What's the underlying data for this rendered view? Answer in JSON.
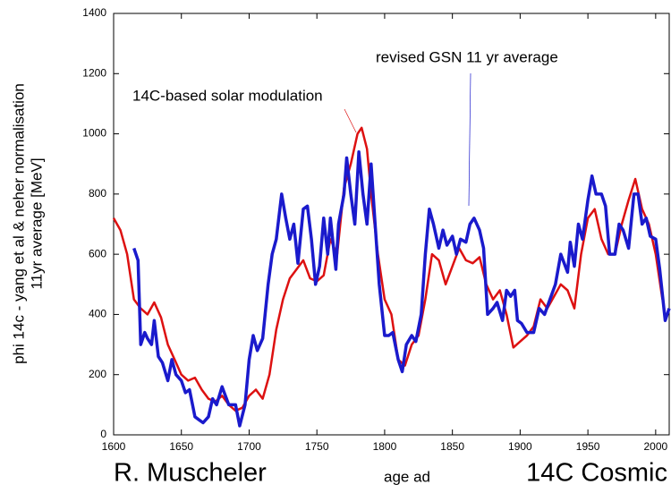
{
  "chart_data": {
    "type": "line",
    "ylabel": [
      "phi 14c - yang et al & neher normalisation",
      "11yr average [MeV]"
    ],
    "xlabel": "age ad",
    "footer_left": "R. Muscheler",
    "footer_right": "14C Cosmic",
    "xlim": [
      1600,
      2010
    ],
    "xticks": [
      1600,
      1650,
      1700,
      1750,
      1800,
      1850,
      1900,
      1950,
      2000
    ],
    "ylim": [
      0,
      1400
    ],
    "yticks": [
      0,
      200,
      400,
      600,
      800,
      1000,
      1200,
      1400
    ],
    "series": [
      {
        "name": "14C-based solar modulation",
        "color": "#dd1111",
        "x": [
          1600,
          1605,
          1610,
          1615,
          1620,
          1625,
          1630,
          1635,
          1640,
          1645,
          1650,
          1655,
          1660,
          1665,
          1670,
          1675,
          1680,
          1685,
          1690,
          1695,
          1700,
          1705,
          1710,
          1715,
          1720,
          1725,
          1730,
          1735,
          1740,
          1745,
          1750,
          1755,
          1760,
          1765,
          1770,
          1775,
          1780,
          1783,
          1787,
          1790,
          1795,
          1800,
          1805,
          1810,
          1815,
          1820,
          1825,
          1830,
          1835,
          1840,
          1845,
          1850,
          1855,
          1860,
          1865,
          1870,
          1875,
          1880,
          1885,
          1890,
          1895,
          1900,
          1905,
          1910,
          1915,
          1920,
          1925,
          1930,
          1935,
          1940,
          1945,
          1950,
          1955,
          1960,
          1965,
          1970,
          1975,
          1980,
          1985,
          1990,
          1995,
          2000,
          2005
        ],
        "values": [
          720,
          680,
          600,
          450,
          420,
          400,
          440,
          390,
          300,
          250,
          200,
          180,
          190,
          150,
          120,
          110,
          130,
          100,
          80,
          90,
          130,
          150,
          120,
          200,
          350,
          450,
          520,
          550,
          580,
          520,
          510,
          530,
          650,
          600,
          820,
          900,
          1000,
          1020,
          950,
          800,
          600,
          450,
          400,
          250,
          230,
          300,
          330,
          450,
          600,
          580,
          500,
          560,
          620,
          580,
          570,
          590,
          500,
          450,
          480,
          400,
          290,
          310,
          330,
          360,
          450,
          420,
          460,
          500,
          480,
          420,
          600,
          720,
          750,
          650,
          600,
          600,
          700,
          780,
          850,
          750,
          700,
          600,
          450
        ]
      },
      {
        "name": "revised GSN 11 yr average",
        "color": "#1a1acc",
        "x": [
          1615,
          1618,
          1620,
          1623,
          1625,
          1628,
          1630,
          1633,
          1636,
          1640,
          1643,
          1646,
          1650,
          1653,
          1656,
          1660,
          1663,
          1666,
          1670,
          1673,
          1676,
          1680,
          1685,
          1690,
          1693,
          1697,
          1700,
          1703,
          1706,
          1710,
          1714,
          1717,
          1720,
          1724,
          1727,
          1730,
          1733,
          1736,
          1740,
          1743,
          1746,
          1749,
          1752,
          1755,
          1758,
          1760,
          1764,
          1766,
          1770,
          1772,
          1775,
          1778,
          1781,
          1784,
          1787,
          1790,
          1793,
          1796,
          1800,
          1803,
          1806,
          1810,
          1813,
          1816,
          1820,
          1823,
          1827,
          1830,
          1833,
          1836,
          1840,
          1843,
          1846,
          1850,
          1853,
          1856,
          1860,
          1863,
          1866,
          1870,
          1873,
          1876,
          1880,
          1883,
          1887,
          1890,
          1893,
          1896,
          1898,
          1901,
          1905,
          1910,
          1914,
          1918,
          1922,
          1926,
          1930,
          1935,
          1937,
          1940,
          1943,
          1946,
          1950,
          1953,
          1956,
          1960,
          1963,
          1966,
          1970,
          1973,
          1976,
          1980,
          1984,
          1987,
          1990,
          1993,
          1996,
          2000,
          2003,
          2007,
          2010
        ],
        "values": [
          620,
          580,
          300,
          340,
          320,
          300,
          380,
          260,
          240,
          180,
          250,
          200,
          180,
          140,
          150,
          60,
          50,
          40,
          60,
          120,
          100,
          160,
          100,
          100,
          30,
          100,
          250,
          330,
          280,
          320,
          500,
          600,
          650,
          800,
          720,
          650,
          700,
          570,
          750,
          760,
          650,
          500,
          560,
          720,
          600,
          720,
          550,
          700,
          800,
          920,
          800,
          700,
          940,
          800,
          700,
          900,
          700,
          500,
          330,
          330,
          340,
          250,
          210,
          300,
          330,
          310,
          400,
          600,
          750,
          700,
          620,
          680,
          630,
          660,
          600,
          650,
          640,
          700,
          720,
          680,
          620,
          400,
          420,
          440,
          380,
          480,
          460,
          480,
          380,
          370,
          340,
          340,
          420,
          400,
          450,
          500,
          600,
          540,
          640,
          560,
          700,
          650,
          780,
          860,
          800,
          800,
          760,
          600,
          600,
          700,
          680,
          620,
          800,
          800,
          700,
          720,
          660,
          650,
          550,
          380,
          420
        ]
      }
    ]
  }
}
